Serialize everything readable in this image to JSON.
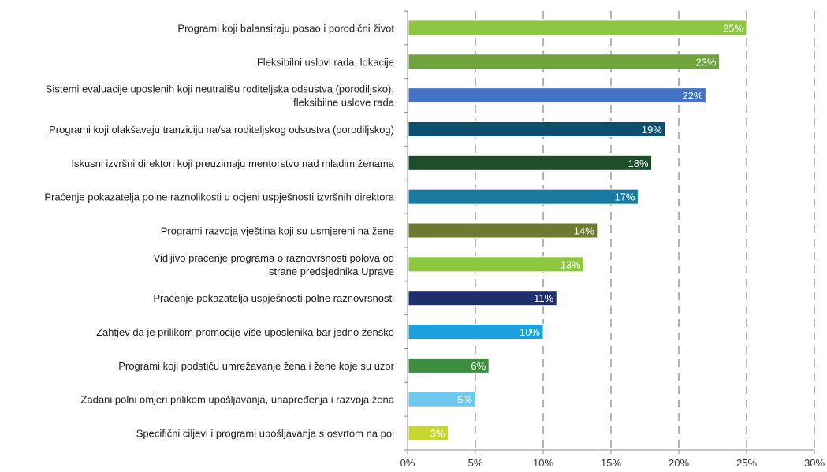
{
  "chart_data": {
    "type": "bar",
    "orientation": "horizontal",
    "categories": [
      [
        "Programi koji balansiraju posao i porodični život"
      ],
      [
        "Fleksibilni uslovi rada, lokacije"
      ],
      [
        "Sistemi evaluacije uposlenih koji neutrališu roditeljska odsustva (porodiljsko),",
        "fleksibilne uslove rada"
      ],
      [
        "Programi koji olakšavaju tranziciju na/sa roditeljskog odsustva (porodiljskog)"
      ],
      [
        "Iskusni izvršni direktori koji preuzimaju mentorstvo nad mladim ženama"
      ],
      [
        "Praćenje pokazatelja polne raznolikosti u ocjeni uspješnosti izvršnih direktora"
      ],
      [
        "Programi razvoja vještina koji su usmjereni na žene"
      ],
      [
        "Vidljivo praćenje programa o raznovrsnosti polova od",
        "strane predsjednika Uprave"
      ],
      [
        "Praćenje pokazatelja uspješnosti polne raznovrsnosti"
      ],
      [
        "Zahtjev da je prilikom promocije više uposlenika bar jedno žensko"
      ],
      [
        "Programi koji podstiču umrežavanje žena i žene koje su uzor"
      ],
      [
        "Zadani polni omjeri prilikom upošljavanja, unapređenja i razvoja žena"
      ],
      [
        "Specifični ciljevi i programi upošljavanja s osvrtom na pol"
      ]
    ],
    "values": [
      25,
      23,
      22,
      19,
      18,
      17,
      14,
      13,
      11,
      10,
      6,
      5,
      3
    ],
    "value_labels": [
      "25%",
      "23%",
      "22%",
      "19%",
      "18%",
      "17%",
      "14%",
      "13%",
      "11%",
      "10%",
      "6%",
      "5%",
      "3%"
    ],
    "colors": [
      "#8dc63f",
      "#6fa33e",
      "#4472c4",
      "#0b4f6c",
      "#1e4d2b",
      "#1a7aa0",
      "#6b7a2f",
      "#8dc63f",
      "#1f2f6b",
      "#1ba1dc",
      "#3e8e41",
      "#6fc8ef",
      "#c6d82f"
    ],
    "xlim": [
      0,
      30
    ],
    "xticks": [
      0,
      5,
      10,
      15,
      20,
      25,
      30
    ],
    "xtick_labels": [
      "0%",
      "5%",
      "10%",
      "15%",
      "20%",
      "25%",
      "30%"
    ],
    "grid": "vertical dashed",
    "title": "",
    "xlabel": "",
    "ylabel": ""
  }
}
